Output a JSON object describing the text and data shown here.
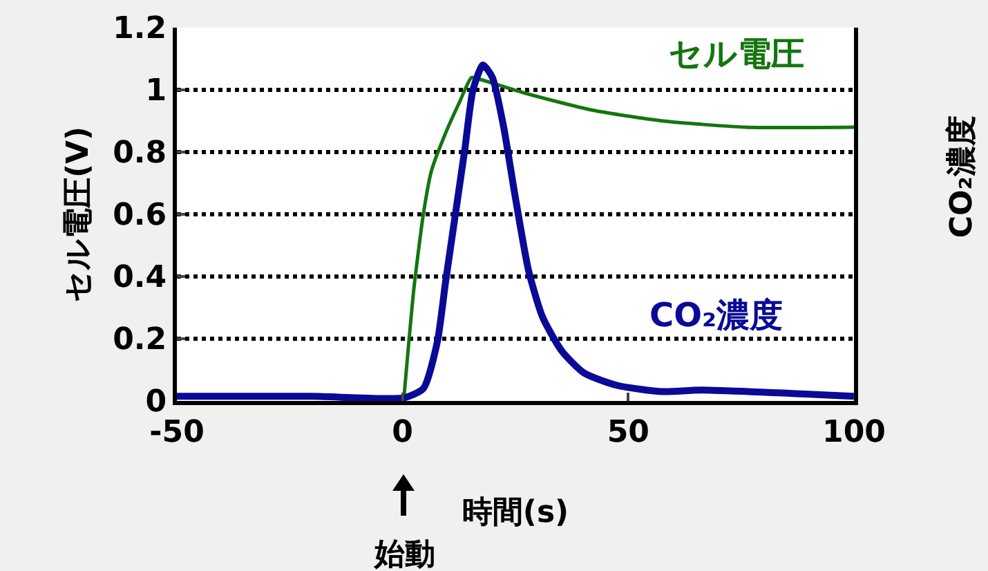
{
  "chart_data": {
    "type": "line",
    "xlabel": "時間(s)",
    "ylabel": "セル電圧(V)",
    "y2label": "CO₂濃度",
    "xlim": [
      -50,
      100
    ],
    "xticks": [
      -50,
      0,
      50,
      100
    ],
    "ylim": [
      0,
      1.2
    ],
    "yticks": [
      0,
      0.2,
      0.4,
      0.6,
      0.8,
      1,
      1.2
    ],
    "grid": "y",
    "legend": false,
    "marker": "none",
    "line_style": "solid",
    "annotations": [
      "始動"
    ],
    "series": [
      {
        "name": "セル電圧",
        "color": "#13760f",
        "x": [
          0.3,
          2.5,
          4.6,
          6.4,
          9.5,
          12.6,
          15.3,
          16.9,
          27,
          42,
          57.7,
          76,
          100
        ],
        "values": [
          0.01,
          0.36,
          0.6,
          0.74,
          0.86,
          0.96,
          1.04,
          1.035,
          0.99,
          0.935,
          0.9,
          0.88,
          0.88
        ]
      },
      {
        "name": "CO₂濃度",
        "color": "#0a0a96",
        "x": [
          -50,
          -20,
          0.3,
          4.6,
          7.7,
          9.5,
          11.7,
          13.8,
          15.6,
          17.8,
          19.9,
          22.4,
          24.8,
          27.9,
          31,
          35.3,
          40.2,
          47.5,
          57.7,
          66,
          100
        ],
        "values": [
          0.015,
          0.015,
          0.01,
          0.04,
          0.19,
          0.38,
          0.6,
          0.81,
          1.0,
          1.08,
          1.04,
          0.88,
          0.67,
          0.42,
          0.27,
          0.16,
          0.09,
          0.05,
          0.03,
          0.035,
          0.015
        ]
      }
    ]
  }
}
